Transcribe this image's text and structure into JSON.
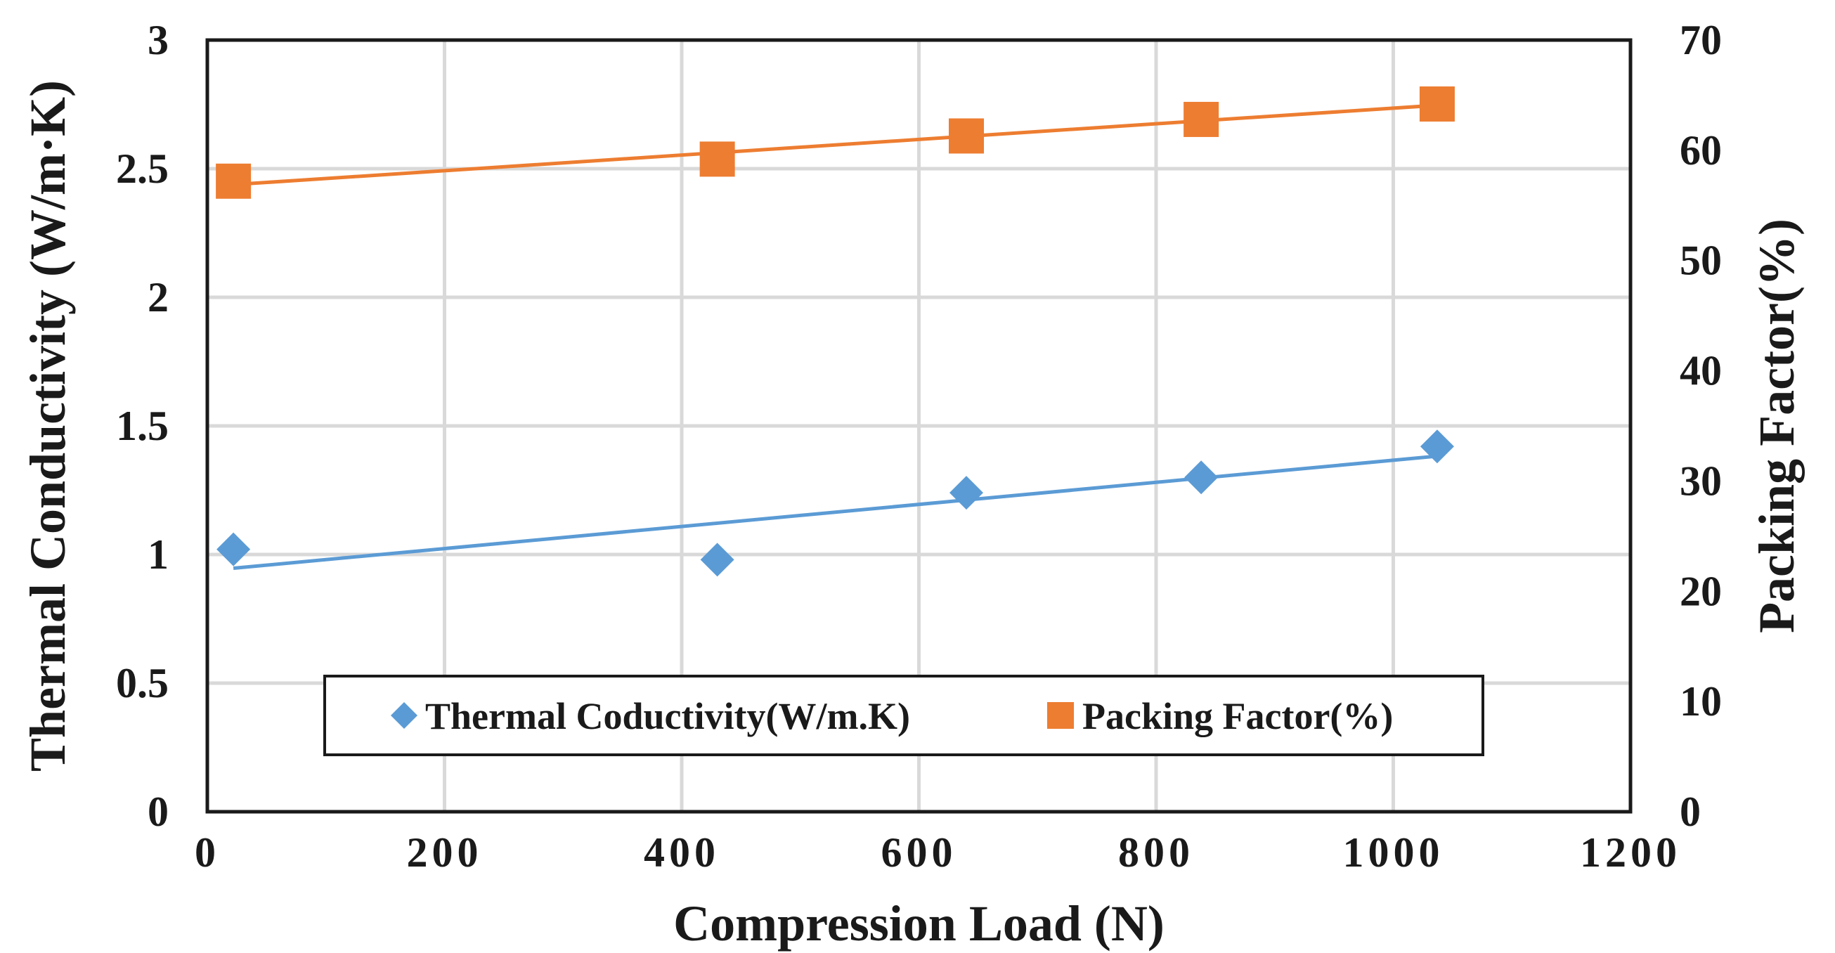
{
  "chart_data": {
    "type": "scatter",
    "title": "",
    "xlabel": "Compression Load (N)",
    "ylabel_left": "Thermal Conductivity (W/m·K)",
    "ylabel_right": "Packing Factor(%)",
    "xlim": [
      0,
      1200
    ],
    "ylim_left": [
      0,
      3
    ],
    "ylim_right": [
      0,
      70
    ],
    "x_ticks": [
      "0",
      "200",
      "400",
      "600",
      "800",
      "1000",
      "1200"
    ],
    "y_left_ticks": [
      "0",
      "0.5",
      "1",
      "1.5",
      "2",
      "2.5",
      "3"
    ],
    "y_right_ticks": [
      "0",
      "10",
      "20",
      "30",
      "40",
      "50",
      "60",
      "70"
    ],
    "grid": true,
    "legend_position": "bottom-center",
    "series": [
      {
        "name": "Thermal Coductivity(W/m.K)",
        "axis": "left",
        "marker": "diamond",
        "color": "#5B9BD5",
        "x": [
          22,
          430,
          640,
          838,
          1037
        ],
        "y": [
          1.02,
          0.98,
          1.24,
          1.3,
          1.42
        ],
        "trendline": true
      },
      {
        "name": "Packing Factor(%)",
        "axis": "right",
        "marker": "square",
        "color": "#ED7D31",
        "x": [
          22,
          430,
          640,
          838,
          1037
        ],
        "y": [
          57.2,
          59.2,
          61.3,
          62.8,
          64.2
        ],
        "trendline": true
      }
    ]
  }
}
